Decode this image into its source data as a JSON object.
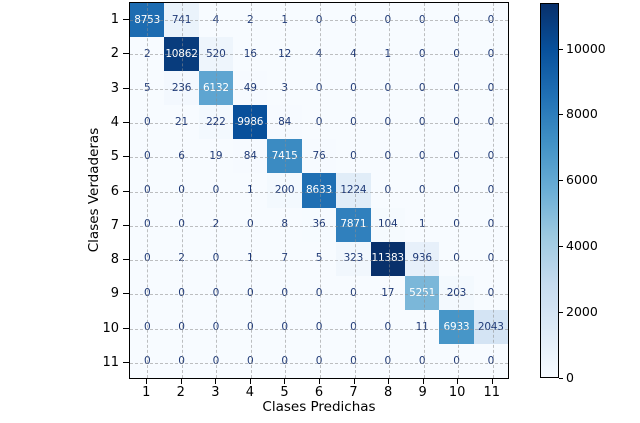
{
  "chart_data": {
    "type": "heatmap",
    "title": "",
    "xlabel": "Clases Predichas",
    "ylabel": "Clases Verdaderas",
    "x_categories": [
      "1",
      "2",
      "3",
      "4",
      "5",
      "6",
      "7",
      "8",
      "9",
      "10",
      "11"
    ],
    "y_categories": [
      "1",
      "2",
      "3",
      "4",
      "5",
      "6",
      "7",
      "8",
      "9",
      "10",
      "11"
    ],
    "matrix": [
      [
        8753,
        741,
        4,
        2,
        1,
        0,
        0,
        0,
        0,
        0,
        0
      ],
      [
        2,
        10862,
        520,
        16,
        12,
        4,
        4,
        1,
        0,
        0,
        0
      ],
      [
        5,
        236,
        6132,
        49,
        3,
        0,
        0,
        0,
        0,
        0,
        0
      ],
      [
        0,
        21,
        222,
        9986,
        84,
        0,
        0,
        0,
        0,
        0,
        0
      ],
      [
        0,
        6,
        19,
        84,
        7415,
        76,
        0,
        0,
        0,
        0,
        0
      ],
      [
        0,
        0,
        0,
        1,
        200,
        8633,
        1224,
        0,
        0,
        0,
        0
      ],
      [
        0,
        0,
        2,
        0,
        8,
        36,
        7871,
        104,
        1,
        0,
        0
      ],
      [
        0,
        2,
        0,
        1,
        7,
        5,
        323,
        11383,
        936,
        0,
        0
      ],
      [
        0,
        0,
        0,
        0,
        0,
        0,
        0,
        17,
        5251,
        203,
        0
      ],
      [
        0,
        0,
        0,
        0,
        0,
        0,
        0,
        0,
        11,
        6933,
        2043
      ],
      [
        0,
        0,
        0,
        0,
        0,
        0,
        0,
        0,
        0,
        0,
        0
      ]
    ],
    "vmin": 0,
    "vmax": 11383,
    "grid": true,
    "colorbar": {
      "position": "right",
      "tick_values": [
        0,
        2000,
        4000,
        6000,
        8000,
        10000
      ],
      "tick_labels": [
        "0",
        "2000",
        "4000",
        "6000",
        "8000",
        "10000"
      ]
    },
    "colormap": {
      "name": "Blues",
      "anchors": [
        {
          "pos": 0.0,
          "color": "#f7fbff"
        },
        {
          "pos": 0.125,
          "color": "#deebf7"
        },
        {
          "pos": 0.25,
          "color": "#c6dbef"
        },
        {
          "pos": 0.375,
          "color": "#9ecae1"
        },
        {
          "pos": 0.5,
          "color": "#6baed6"
        },
        {
          "pos": 0.625,
          "color": "#4292c6"
        },
        {
          "pos": 0.75,
          "color": "#2171b5"
        },
        {
          "pos": 0.875,
          "color": "#08519c"
        },
        {
          "pos": 1.0,
          "color": "#08306b"
        }
      ]
    },
    "colors": {
      "figure_background": "#ffffff",
      "plot_background": "#f7fbff",
      "frame": "#000000",
      "gridline": "#8c8c8c",
      "cell_text_dark": "#1f3a77",
      "cell_text_light": "#ffffff"
    },
    "light_text_threshold": 0.4
  }
}
